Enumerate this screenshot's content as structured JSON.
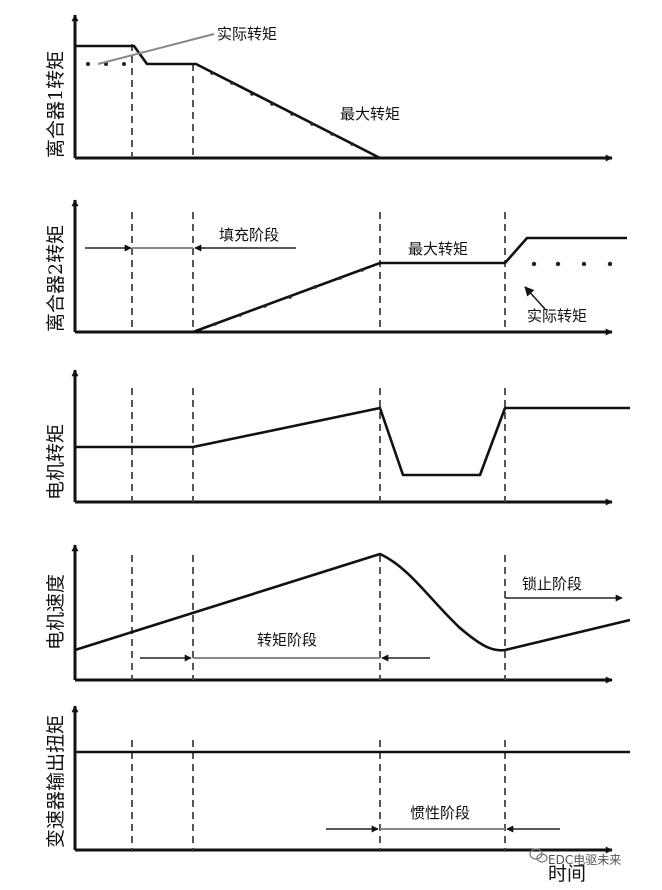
{
  "panels": [
    {
      "id": "clutch1",
      "ylabel": "离合器1转矩",
      "labels": [
        "实际转矩",
        "最大转矩"
      ]
    },
    {
      "id": "clutch2",
      "ylabel": "离合器2转矩",
      "labels": [
        "填充阶段",
        "最大转矩",
        "实际转矩"
      ]
    },
    {
      "id": "motor-torque",
      "ylabel": "电机转矩",
      "labels": []
    },
    {
      "id": "motor-speed",
      "ylabel": "电机速度",
      "labels": [
        "锁止阶段",
        "转矩阶段"
      ]
    },
    {
      "id": "output-torque",
      "ylabel": "变速器输出扭矩",
      "labels": [
        "惯性阶段"
      ]
    }
  ],
  "x_axis_label": "时间",
  "watermark": "EDC电驱未来",
  "watermark_icon": "wechat-icon"
}
